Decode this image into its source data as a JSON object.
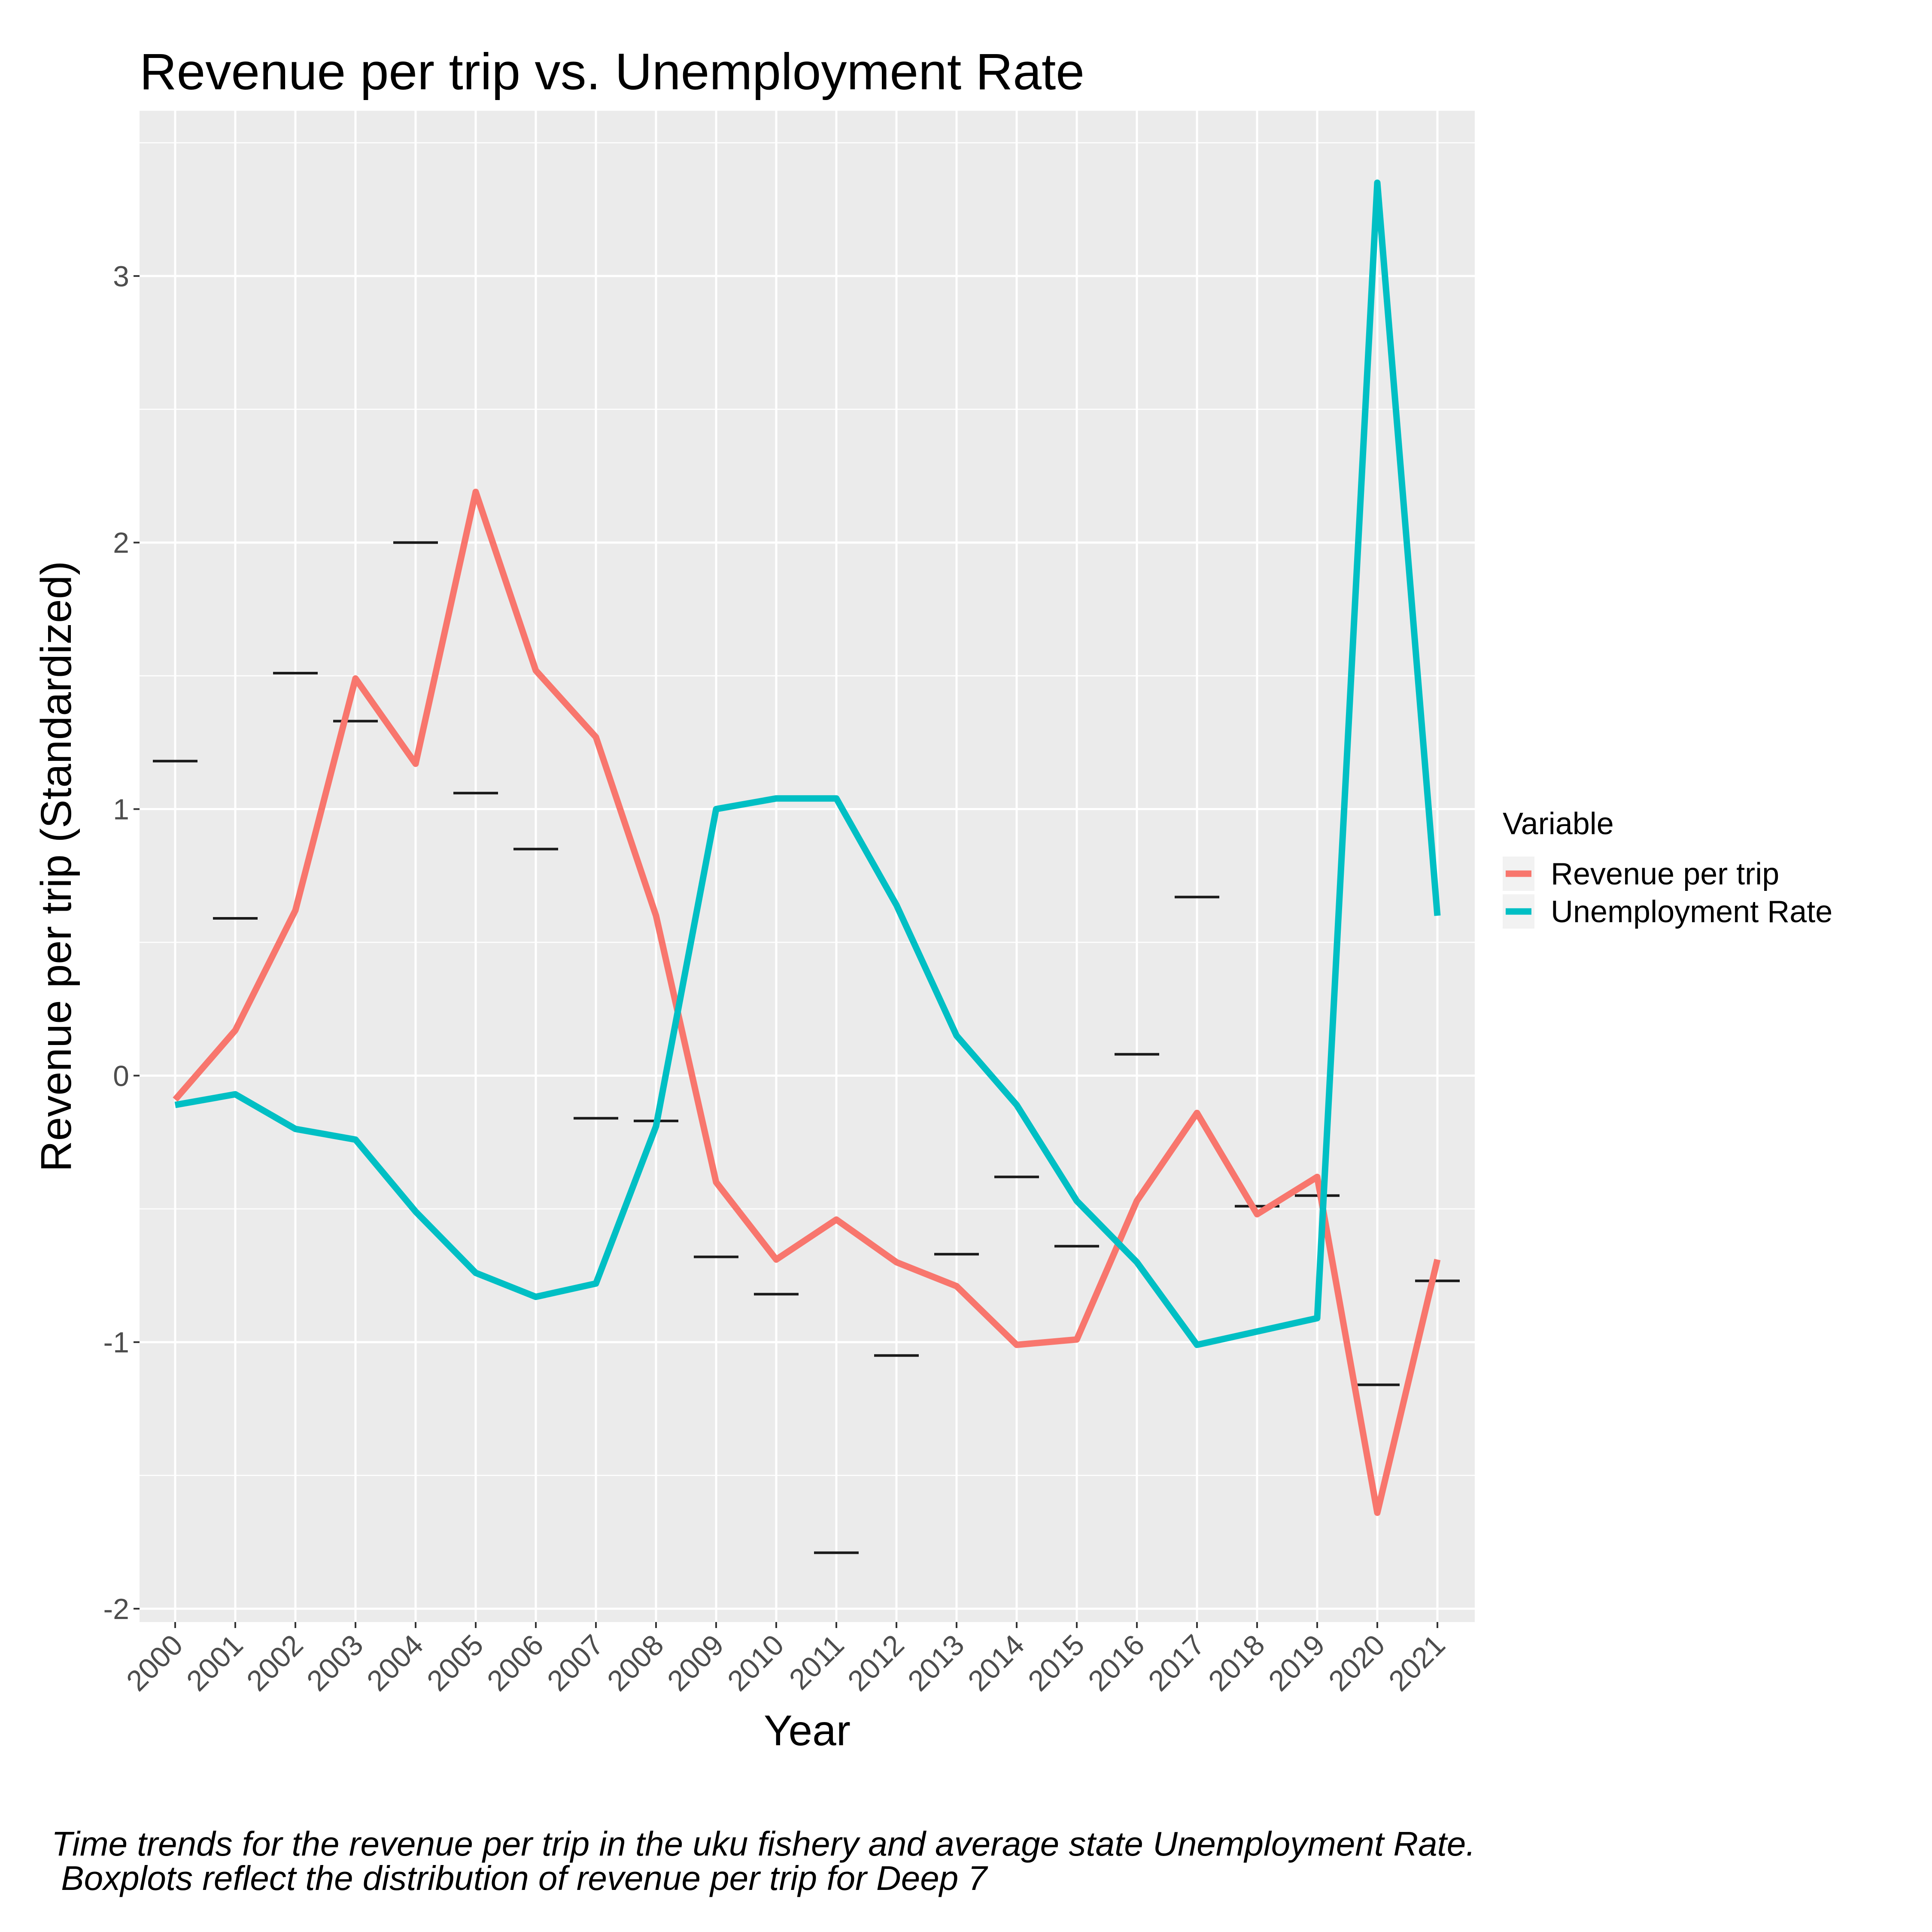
{
  "chart_data": {
    "type": "line",
    "title": "Revenue per trip vs. Unemployment Rate",
    "xlabel": "Year",
    "ylabel": "Revenue per trip (Standardized)",
    "categories": [
      "2000",
      "2001",
      "2002",
      "2003",
      "2004",
      "2005",
      "2006",
      "2007",
      "2008",
      "2009",
      "2010",
      "2011",
      "2012",
      "2013",
      "2014",
      "2015",
      "2016",
      "2017",
      "2018",
      "2019",
      "2020",
      "2021"
    ],
    "y_ticks": [
      "-2",
      "-1",
      "0",
      "1",
      "2",
      "3"
    ],
    "ylim": [
      -2.05,
      3.62
    ],
    "grid": true,
    "legend": {
      "title": "Variable",
      "position": "right"
    },
    "series": [
      {
        "name": "Revenue per trip",
        "color": "#F8766D",
        "values": [
          -0.09,
          0.17,
          0.62,
          1.49,
          1.17,
          2.19,
          1.52,
          1.27,
          0.6,
          -0.4,
          -0.69,
          -0.54,
          -0.7,
          -0.79,
          -1.01,
          -0.99,
          -0.47,
          -0.14,
          -0.52,
          -0.38,
          -1.64,
          -0.69
        ]
      },
      {
        "name": "Unemployment Rate",
        "color": "#00BFC4",
        "values": [
          -0.11,
          -0.07,
          -0.2,
          -0.24,
          -0.51,
          -0.74,
          -0.83,
          -0.78,
          -0.19,
          1.0,
          1.04,
          1.04,
          0.64,
          0.15,
          -0.11,
          -0.47,
          -0.7,
          -1.01,
          -0.96,
          -0.91,
          3.35,
          0.6
        ]
      }
    ],
    "boxplot_medians": {
      "color": "#1a1a1a",
      "values": [
        1.18,
        0.59,
        1.51,
        1.33,
        2.0,
        1.06,
        0.85,
        -0.16,
        -0.17,
        -0.68,
        -0.82,
        -1.79,
        -1.05,
        -0.67,
        -0.38,
        -0.64,
        0.08,
        0.67,
        -0.49,
        -0.45,
        -1.16,
        -0.77
      ]
    },
    "caption": [
      "Time trends for the revenue per trip in the uku fishery and average state Unemployment Rate.",
      " Boxplots reflect the distribution of revenue per trip for Deep 7"
    ]
  }
}
